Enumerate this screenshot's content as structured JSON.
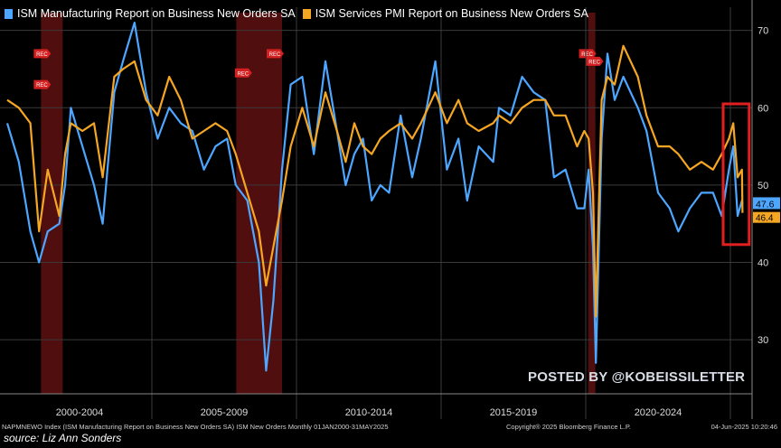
{
  "legend": {
    "series1": "ISM Manufacturing Report on Business New Orders SA",
    "series2": "ISM Services PMI Report on Business New Orders SA"
  },
  "watermark": "POSTED BY @KOBEISSILETTER",
  "footer": {
    "left": "NAPMNEWO Index (ISM Manufacturing Report on Business New Orders SA) ISM New Orders  Monthly 01JAN2000-31MAY2025",
    "center": "Copyright® 2025 Bloomberg Finance L.P.",
    "right": "04-Jun-2025 10:20:46"
  },
  "source": "source: Liz Ann Sonders",
  "colors": {
    "manufacturing": "#4da6ff",
    "services": "#f5a623",
    "recession": "#5a1010",
    "highlight_box": "#e02020",
    "rec_marker": "#d42020"
  },
  "chart_data": {
    "type": "line",
    "x_range": [
      "2000-01",
      "2025-05"
    ],
    "ylim": [
      23,
      73
    ],
    "y_ticks": [
      30,
      40,
      50,
      60,
      70
    ],
    "x_tick_labels": [
      "2000-2004",
      "2005-2009",
      "2010-2014",
      "2015-2019",
      "2020-2024"
    ],
    "grid": true,
    "recession_marker": "REC",
    "recessions": [
      [
        "2001-03",
        "2001-11"
      ],
      [
        "2007-12",
        "2009-06"
      ],
      [
        "2020-02",
        "2020-04"
      ]
    ],
    "last_values": {
      "manufacturing": "47.6",
      "services": "46.4"
    },
    "series": [
      {
        "name": "ISM Manufacturing Report on Business New Orders SA",
        "color": "#4da6ff",
        "points": [
          [
            2000.0,
            58
          ],
          [
            2000.4,
            53
          ],
          [
            2000.8,
            44
          ],
          [
            2001.1,
            40
          ],
          [
            2001.4,
            44
          ],
          [
            2001.8,
            45
          ],
          [
            2002.0,
            50
          ],
          [
            2002.2,
            60
          ],
          [
            2002.6,
            55
          ],
          [
            2003.0,
            50
          ],
          [
            2003.3,
            45
          ],
          [
            2003.7,
            62
          ],
          [
            2004.0,
            66
          ],
          [
            2004.4,
            71
          ],
          [
            2004.8,
            62
          ],
          [
            2005.2,
            56
          ],
          [
            2005.6,
            60
          ],
          [
            2006.0,
            58
          ],
          [
            2006.4,
            57
          ],
          [
            2006.8,
            52
          ],
          [
            2007.2,
            55
          ],
          [
            2007.6,
            56
          ],
          [
            2007.9,
            50
          ],
          [
            2008.3,
            48
          ],
          [
            2008.7,
            40
          ],
          [
            2008.95,
            26
          ],
          [
            2009.2,
            35
          ],
          [
            2009.5,
            52
          ],
          [
            2009.8,
            63
          ],
          [
            2010.2,
            64
          ],
          [
            2010.6,
            54
          ],
          [
            2011.0,
            66
          ],
          [
            2011.4,
            57
          ],
          [
            2011.7,
            50
          ],
          [
            2012.0,
            54
          ],
          [
            2012.3,
            56
          ],
          [
            2012.6,
            48
          ],
          [
            2012.9,
            50
          ],
          [
            2013.2,
            49
          ],
          [
            2013.6,
            59
          ],
          [
            2014.0,
            51
          ],
          [
            2014.3,
            56
          ],
          [
            2014.8,
            66
          ],
          [
            2015.2,
            52
          ],
          [
            2015.6,
            56
          ],
          [
            2015.9,
            48
          ],
          [
            2016.3,
            55
          ],
          [
            2016.8,
            53
          ],
          [
            2017.0,
            60
          ],
          [
            2017.4,
            59
          ],
          [
            2017.8,
            64
          ],
          [
            2018.2,
            62
          ],
          [
            2018.6,
            61
          ],
          [
            2018.9,
            51
          ],
          [
            2019.3,
            52
          ],
          [
            2019.7,
            47
          ],
          [
            2019.95,
            47
          ],
          [
            2020.1,
            52
          ],
          [
            2020.25,
            42
          ],
          [
            2020.35,
            27
          ],
          [
            2020.55,
            56
          ],
          [
            2020.75,
            67
          ],
          [
            2021.0,
            61
          ],
          [
            2021.3,
            64
          ],
          [
            2021.8,
            60
          ],
          [
            2022.1,
            57
          ],
          [
            2022.5,
            49
          ],
          [
            2022.9,
            47
          ],
          [
            2023.2,
            44
          ],
          [
            2023.6,
            47
          ],
          [
            2024.0,
            49
          ],
          [
            2024.4,
            49
          ],
          [
            2024.7,
            46
          ],
          [
            2024.95,
            52
          ],
          [
            2025.1,
            55
          ],
          [
            2025.25,
            46
          ],
          [
            2025.4,
            48
          ],
          [
            2025.42,
            47.6
          ]
        ]
      },
      {
        "name": "ISM Services PMI Report on Business New Orders SA",
        "color": "#f5a623",
        "points": [
          [
            2000.0,
            61
          ],
          [
            2000.4,
            60
          ],
          [
            2000.8,
            58
          ],
          [
            2001.1,
            44
          ],
          [
            2001.4,
            52
          ],
          [
            2001.8,
            46
          ],
          [
            2002.0,
            54
          ],
          [
            2002.2,
            58
          ],
          [
            2002.6,
            57
          ],
          [
            2003.0,
            58
          ],
          [
            2003.3,
            51
          ],
          [
            2003.7,
            64
          ],
          [
            2004.0,
            65
          ],
          [
            2004.4,
            66
          ],
          [
            2004.8,
            61
          ],
          [
            2005.2,
            59
          ],
          [
            2005.6,
            64
          ],
          [
            2006.0,
            61
          ],
          [
            2006.4,
            56
          ],
          [
            2006.8,
            57
          ],
          [
            2007.2,
            58
          ],
          [
            2007.6,
            57
          ],
          [
            2007.9,
            54
          ],
          [
            2008.3,
            49
          ],
          [
            2008.7,
            44
          ],
          [
            2008.95,
            37
          ],
          [
            2009.2,
            42
          ],
          [
            2009.5,
            48
          ],
          [
            2009.8,
            55
          ],
          [
            2010.2,
            60
          ],
          [
            2010.6,
            55
          ],
          [
            2011.0,
            62
          ],
          [
            2011.4,
            57
          ],
          [
            2011.7,
            53
          ],
          [
            2012.0,
            58
          ],
          [
            2012.3,
            55
          ],
          [
            2012.6,
            54
          ],
          [
            2012.9,
            56
          ],
          [
            2013.2,
            57
          ],
          [
            2013.6,
            58
          ],
          [
            2014.0,
            56
          ],
          [
            2014.3,
            58
          ],
          [
            2014.8,
            62
          ],
          [
            2015.2,
            58
          ],
          [
            2015.6,
            61
          ],
          [
            2015.9,
            58
          ],
          [
            2016.3,
            57
          ],
          [
            2016.8,
            58
          ],
          [
            2017.0,
            59
          ],
          [
            2017.4,
            58
          ],
          [
            2017.8,
            60
          ],
          [
            2018.2,
            61
          ],
          [
            2018.6,
            61
          ],
          [
            2018.9,
            59
          ],
          [
            2019.3,
            59
          ],
          [
            2019.7,
            55
          ],
          [
            2019.95,
            57
          ],
          [
            2020.1,
            56
          ],
          [
            2020.25,
            49
          ],
          [
            2020.35,
            33
          ],
          [
            2020.55,
            61
          ],
          [
            2020.75,
            64
          ],
          [
            2021.0,
            63
          ],
          [
            2021.3,
            68
          ],
          [
            2021.8,
            64
          ],
          [
            2022.1,
            59
          ],
          [
            2022.5,
            55
          ],
          [
            2022.9,
            55
          ],
          [
            2023.2,
            54
          ],
          [
            2023.6,
            52
          ],
          [
            2024.0,
            53
          ],
          [
            2024.4,
            52
          ],
          [
            2024.7,
            54
          ],
          [
            2024.95,
            56
          ],
          [
            2025.1,
            58
          ],
          [
            2025.25,
            51
          ],
          [
            2025.4,
            52
          ],
          [
            2025.42,
            46.4
          ]
        ]
      }
    ]
  }
}
